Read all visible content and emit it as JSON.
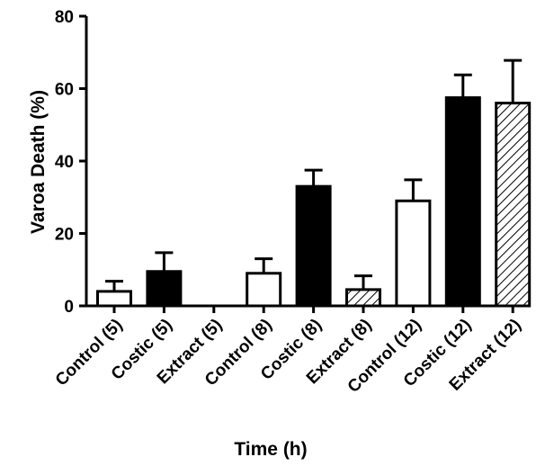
{
  "chart_data": {
    "type": "bar",
    "title": "",
    "xlabel": "Time (h)",
    "ylabel": "Varoa Death (%)",
    "ylim": [
      0,
      80
    ],
    "yticks": [
      0,
      20,
      40,
      60,
      80
    ],
    "categories": [
      "Control (5)",
      "Costic (5)",
      "Extract (5)",
      "Control (8)",
      "Costic (8)",
      "Extract (8)",
      "Control (12)",
      "Costic  (12)",
      "Extract  (12)"
    ],
    "values": [
      4,
      9.5,
      0,
      9,
      33,
      4.5,
      29,
      57.5,
      56
    ],
    "errors": [
      2.8,
      5.2,
      0,
      4,
      4.5,
      3.8,
      5.8,
      6.3,
      11.8
    ],
    "fills": [
      "white",
      "black",
      "hatched",
      "white",
      "black",
      "hatched",
      "white",
      "black",
      "hatched"
    ],
    "grid": false,
    "legend": "none"
  }
}
